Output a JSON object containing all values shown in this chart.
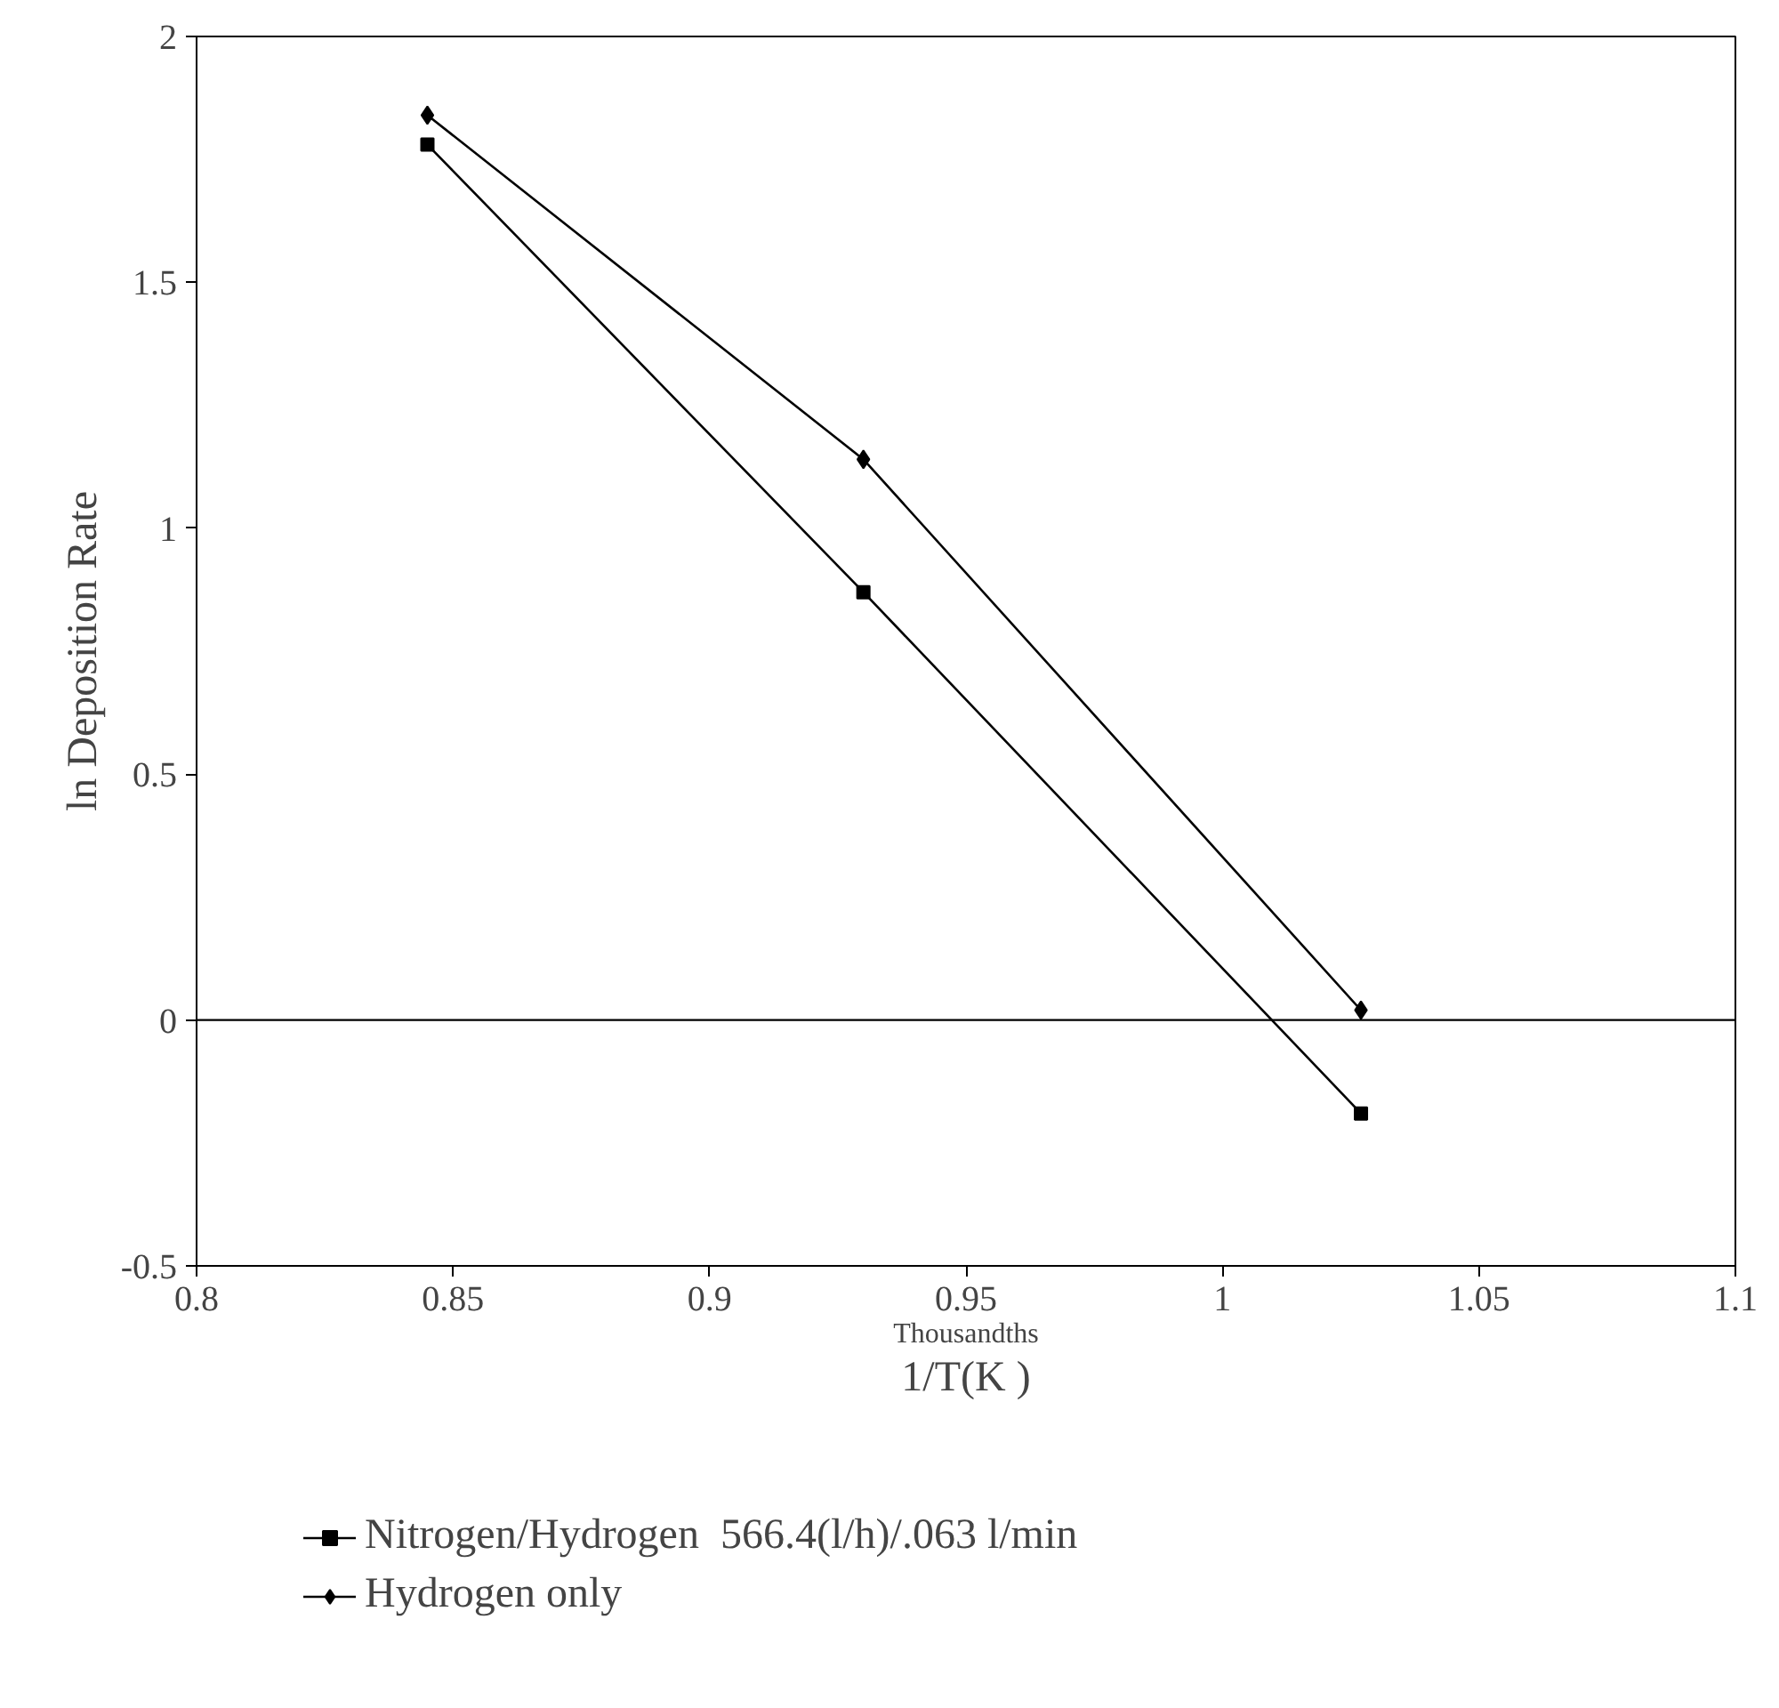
{
  "chart_data": {
    "type": "line",
    "xlabel": "1/T(K )",
    "ylabel": "ln Deposition Rate",
    "annotations": [
      "Thousandths"
    ],
    "x": [
      0.845,
      0.93,
      1.027
    ],
    "series": [
      {
        "name": "Nitrogen/Hydrogen  566.4(l/h)/.063 l/min",
        "color": "#000000",
        "marker": "square",
        "values": [
          1.78,
          0.87,
          -0.19
        ]
      },
      {
        "name": "Hydrogen only",
        "color": "#000000",
        "marker": "diamond",
        "values": [
          1.84,
          1.14,
          0.02
        ]
      }
    ],
    "xlim": [
      0.8,
      1.1
    ],
    "xticks": [
      0.8,
      0.85,
      0.9,
      0.95,
      1,
      1.05,
      1.1
    ],
    "ylim": [
      -0.5,
      2
    ],
    "yticks": [
      -0.5,
      0,
      0.5,
      1,
      1.5,
      2
    ],
    "ref_lines": [
      {
        "axis": "y",
        "value": 0,
        "label": null,
        "color": "#000000"
      }
    ],
    "grid": false,
    "legend": "bottom",
    "line_style": "solid"
  }
}
